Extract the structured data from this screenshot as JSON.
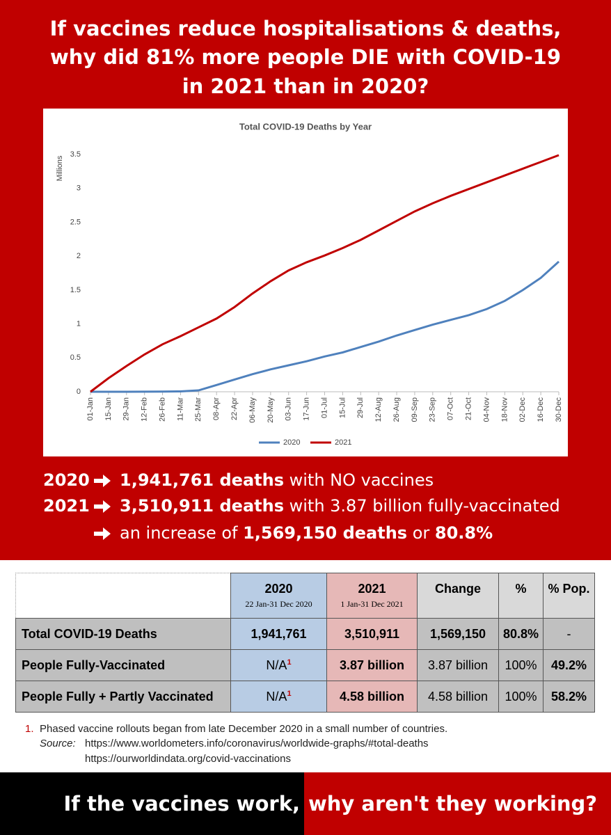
{
  "headline": [
    "If vaccines reduce hospitalisations & deaths,",
    "why did 81% more people DIE with COVID-19",
    "in 2021 than in 2020?"
  ],
  "chart_data": {
    "type": "line",
    "title": "Total COVID-19 Deaths by Year",
    "ylabel": "Millions",
    "categories": [
      "01-Jan",
      "15-Jan",
      "29-Jan",
      "12-Feb",
      "26-Feb",
      "11-Mar",
      "25-Mar",
      "08-Apr",
      "22-Apr",
      "06-May",
      "20-May",
      "03-Jun",
      "17-Jun",
      "01-Jul",
      "15-Jul",
      "29-Jul",
      "12-Aug",
      "26-Aug",
      "09-Sep",
      "23-Sep",
      "07-Oct",
      "21-Oct",
      "04-Nov",
      "18-Nov",
      "02-Dec",
      "16-Dec",
      "30-Dec"
    ],
    "series": [
      {
        "name": "2020",
        "color": "#4f81bd",
        "values": [
          0,
          0,
          0,
          0.001,
          0.003,
          0.005,
          0.02,
          0.1,
          0.18,
          0.26,
          0.33,
          0.39,
          0.45,
          0.52,
          0.58,
          0.66,
          0.74,
          0.83,
          0.91,
          0.99,
          1.06,
          1.13,
          1.22,
          1.34,
          1.5,
          1.68,
          1.92
        ]
      },
      {
        "name": "2021",
        "color": "#c00000",
        "values": [
          0,
          0.2,
          0.38,
          0.55,
          0.7,
          0.82,
          0.95,
          1.08,
          1.25,
          1.45,
          1.63,
          1.79,
          1.91,
          2.01,
          2.12,
          2.24,
          2.38,
          2.52,
          2.66,
          2.78,
          2.89,
          2.99,
          3.09,
          3.19,
          3.29,
          3.39,
          3.49
        ]
      }
    ],
    "ylim": [
      0,
      3.5
    ],
    "yticks": [
      0,
      0.5,
      1,
      1.5,
      2,
      2.5,
      3,
      3.5
    ],
    "grid": false,
    "legend": "bottom"
  },
  "summary": [
    {
      "year": "2020",
      "parts": [
        {
          "text": "1,941,761 deaths",
          "bold": true
        },
        {
          "text": " with NO vaccines",
          "bold": false
        }
      ]
    },
    {
      "year": "2021",
      "parts": [
        {
          "text": "3,510,911 deaths",
          "bold": true
        },
        {
          "text": " with 3.87 billion fully-vaccinated",
          "bold": false
        }
      ]
    },
    {
      "parts": [
        {
          "text": "an increase of ",
          "bold": false
        },
        {
          "text": "1,569,150 deaths",
          "bold": true
        },
        {
          "text": " or ",
          "bold": false
        },
        {
          "text": "80.8%",
          "bold": true
        }
      ]
    }
  ],
  "table": {
    "columns": [
      {
        "title": "2020",
        "sub": "22 Jan-31 Dec 2020"
      },
      {
        "title": "2021",
        "sub": "1 Jan-31 Dec 2021"
      },
      {
        "title": "Change"
      },
      {
        "title": "%"
      },
      {
        "title": "% Pop."
      }
    ],
    "rows": [
      {
        "label": "Total COVID-19 Deaths",
        "cells": [
          {
            "text": "1,941,761",
            "bold": true
          },
          {
            "text": "3,510,911",
            "bold": true
          },
          {
            "text": "1,569,150",
            "bold": true
          },
          {
            "text": "80.8%",
            "bold": true
          },
          {
            "text": "-",
            "bold": false
          }
        ]
      },
      {
        "label": "People Fully-Vaccinated",
        "cells": [
          {
            "text": "N/A",
            "note": "1",
            "bold": false
          },
          {
            "text": "3.87 billion",
            "bold": true
          },
          {
            "text": "3.87 billion",
            "bold": false
          },
          {
            "text": "100%",
            "bold": false
          },
          {
            "text": "49.2%",
            "bold": true
          }
        ]
      },
      {
        "label": "People Fully + Partly Vaccinated",
        "cells": [
          {
            "text": "N/A",
            "note": "1",
            "bold": false
          },
          {
            "text": "4.58 billion",
            "bold": true
          },
          {
            "text": "4.58 billion",
            "bold": false
          },
          {
            "text": "100%",
            "bold": false
          },
          {
            "text": "58.2%",
            "bold": true
          }
        ]
      }
    ]
  },
  "footnote": {
    "number": "1.",
    "text": "Phased vaccine rollouts began from late December 2020 in a small number of countries.",
    "source_label": "Source:",
    "sources": [
      "https://www.worldometers.info/coronavirus/worldwide-graphs/#total-deaths",
      "https://ourworldindata.org/covid-vaccinations"
    ]
  },
  "banner": {
    "left": "If the vaccines work,",
    "right": "why aren't they working?"
  }
}
